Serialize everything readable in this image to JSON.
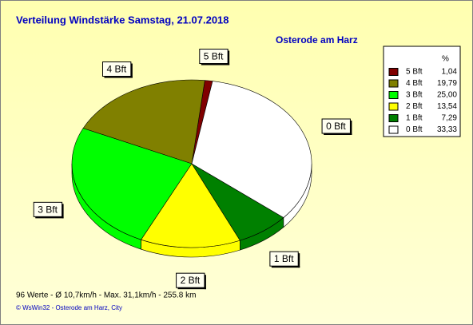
{
  "chart_data": {
    "type": "pie",
    "title": "Verteilung Windstärke  Samstag, 21.07.2018",
    "subtitle": "Osterode am Harz",
    "categories": [
      "5 Bft",
      "4 Bft",
      "3 Bft",
      "2 Bft",
      "1 Bft",
      "0 Bft"
    ],
    "values": [
      1.04,
      19.79,
      25.0,
      13.54,
      7.29,
      33.33
    ],
    "value_labels": [
      "1,04",
      "19,79",
      "25,00",
      "13,54",
      "7,29",
      "33,33"
    ],
    "colors": [
      "#800000",
      "#808000",
      "#00ff00",
      "#ffff00",
      "#008000",
      "#ffffff"
    ],
    "legend_header": "%",
    "legend": "top-right",
    "annotations": [
      "96 Werte   -   Ø 10,7km/h  -  Max. 31,1km/h   -   255.8 km",
      "© WsWin32  -  Osterode am Harz, City"
    ]
  }
}
